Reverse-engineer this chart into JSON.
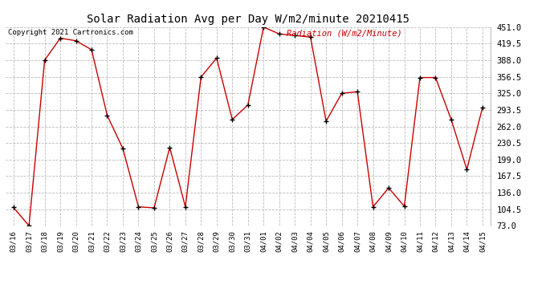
{
  "title": "Solar Radiation Avg per Day W/m2/minute 20210415",
  "copyright": "Copyright 2021 Cartronics.com",
  "legend_label": "Radiation (W/m2/Minute)",
  "dates": [
    "03/16",
    "03/17",
    "03/18",
    "03/19",
    "03/20",
    "03/21",
    "03/22",
    "03/23",
    "03/24",
    "03/25",
    "03/26",
    "03/27",
    "03/28",
    "03/29",
    "03/30",
    "03/31",
    "04/01",
    "04/02",
    "04/03",
    "04/04",
    "04/05",
    "04/06",
    "04/07",
    "04/08",
    "04/09",
    "04/10",
    "04/11",
    "04/12",
    "04/13",
    "04/14",
    "04/15"
  ],
  "values": [
    108,
    73,
    388,
    430,
    425,
    408,
    283,
    220,
    109,
    107,
    222,
    109,
    356,
    392,
    275,
    303,
    451,
    438,
    435,
    432,
    272,
    325,
    328,
    109,
    145,
    110,
    355,
    355,
    275,
    180,
    298
  ],
  "yticks": [
    73.0,
    104.5,
    136.0,
    167.5,
    199.0,
    230.5,
    262.0,
    293.5,
    325.0,
    356.5,
    388.0,
    419.5,
    451.0
  ],
  "ylim_min": 73.0,
  "ylim_max": 451.0,
  "line_color": "#cc0000",
  "marker_color": "#000000",
  "bg_color": "#ffffff",
  "grid_color": "#bbbbbb",
  "title_fontsize": 10,
  "xlabel_fontsize": 6.5,
  "ylabel_fontsize": 7.5,
  "copyright_color": "#000000",
  "legend_color": "#cc0000",
  "figure_width": 6.9,
  "figure_height": 3.75,
  "dpi": 100
}
